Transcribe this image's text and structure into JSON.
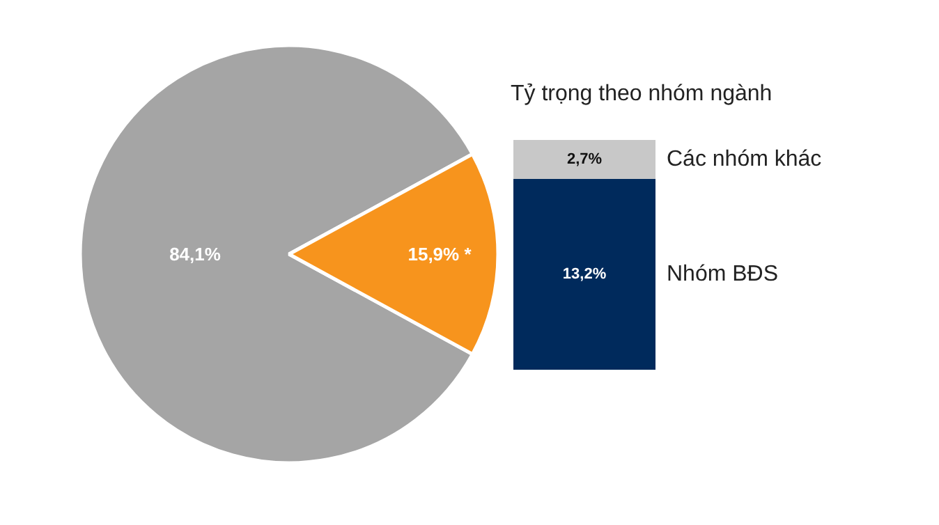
{
  "chart_data": [
    {
      "type": "pie",
      "categories": [
        null,
        null
      ],
      "values": [
        84.1,
        15.9
      ],
      "colors": [
        "#a5a5a5",
        "#f7941d"
      ],
      "value_labels": [
        "84,1%",
        "15,9% *"
      ]
    },
    {
      "type": "bar",
      "title": "Tỷ trọng theo nhóm ngành",
      "stacked": true,
      "categories": [
        null
      ],
      "tick_labels": false,
      "series": [
        {
          "name": "Nhóm BĐS",
          "color": "#002a5c",
          "values": [
            13.2
          ],
          "value_labels": [
            "13,2%"
          ]
        },
        {
          "name": "Các nhóm khác",
          "color": "#c8c8c8",
          "values": [
            2.7
          ],
          "value_labels": [
            "2,7%"
          ]
        }
      ]
    }
  ]
}
